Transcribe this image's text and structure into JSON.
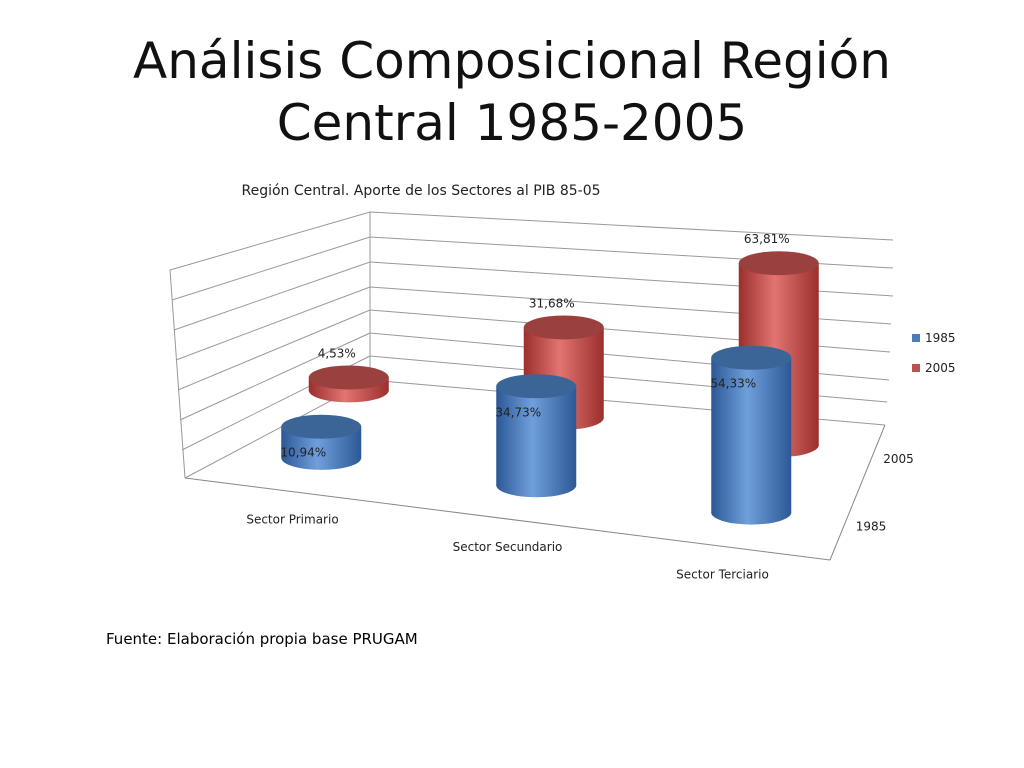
{
  "slide": {
    "title": "Análisis Composicional Región Central 1985-2005",
    "source": "Fuente: Elaboración propia  base PRUGAM"
  },
  "chart_data": {
    "type": "bar3d",
    "title": "Región Central. Aporte de los Sectores al PIB 85-05",
    "categories": [
      "Sector Primario",
      "Sector Secundario",
      "Sector Terciario"
    ],
    "series": [
      {
        "name": "1985",
        "color": "#4a7ebb",
        "values": [
          10.94,
          34.73,
          54.33
        ],
        "value_labels": [
          "10,94%",
          "34,73%",
          "54,33%"
        ]
      },
      {
        "name": "2005",
        "color": "#c0504d",
        "values": [
          4.53,
          31.68,
          63.81
        ],
        "value_labels": [
          "4,53%",
          "31,68%",
          "63,81%"
        ]
      }
    ],
    "legend": "right"
  }
}
